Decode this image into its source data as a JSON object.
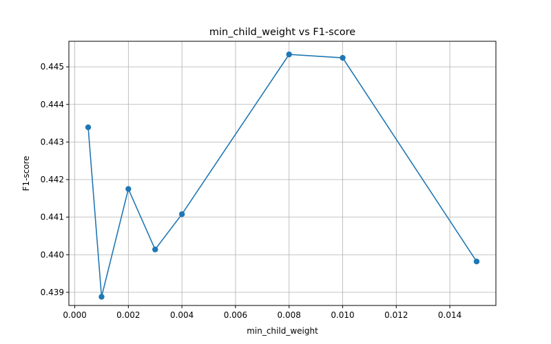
{
  "chart_data": {
    "type": "line",
    "title": "min_child_weight vs F1-score",
    "xlabel": "min_child_weight",
    "ylabel": "F1-score",
    "xlim": [
      -0.00022,
      0.01572
    ],
    "ylim": [
      0.43865,
      0.44568
    ],
    "xticks": [
      0.0,
      0.002,
      0.004,
      0.006,
      0.008,
      0.01,
      0.012,
      0.014
    ],
    "xtick_labels": [
      "0.000",
      "0.002",
      "0.004",
      "0.006",
      "0.008",
      "0.010",
      "0.012",
      "0.014"
    ],
    "yticks": [
      0.439,
      0.44,
      0.441,
      0.442,
      0.443,
      0.444,
      0.445
    ],
    "ytick_labels": [
      "0.439",
      "0.440",
      "0.441",
      "0.442",
      "0.443",
      "0.444",
      "0.445"
    ],
    "grid": true,
    "series": [
      {
        "color": "#1f77b4",
        "marker": "circle",
        "x": [
          0.0005,
          0.001,
          0.002,
          0.003,
          0.004,
          0.008,
          0.01,
          0.015
        ],
        "y": [
          0.44339,
          0.43888,
          0.44175,
          0.44014,
          0.44108,
          0.44533,
          0.44524,
          0.43982
        ]
      }
    ]
  }
}
